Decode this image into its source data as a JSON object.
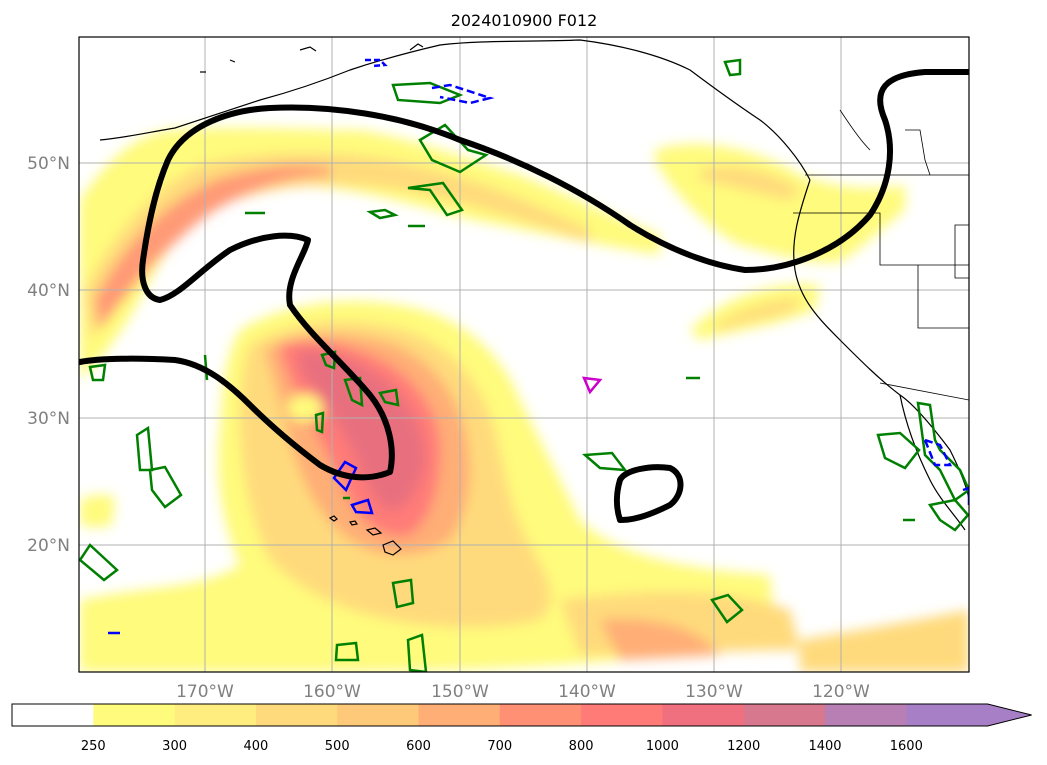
{
  "title": "2024010900 F012",
  "map": {
    "lat_labels": [
      "50°N",
      "40°N",
      "30°N",
      "20°N"
    ],
    "lon_labels": [
      "170°W",
      "160°W",
      "150°W",
      "140°W",
      "130°W",
      "120°W"
    ],
    "gridlines": true
  },
  "colorbar": {
    "levels": [
      "250",
      "300",
      "400",
      "500",
      "600",
      "700",
      "800",
      "1000",
      "1200",
      "1400",
      "1600"
    ],
    "colors": [
      "#ffffff",
      "#fffb7c",
      "#ffed80",
      "#ffda7c",
      "#ffc97a",
      "#ffae76",
      "#ff9074",
      "#ff7b78",
      "#f07080",
      "#d8788e",
      "#b87fb4",
      "#a77fc6"
    ],
    "extend": "max"
  },
  "contours": {
    "thick_line_color": "#000000",
    "hatched_contour_color": "#008000",
    "dashed_contour_color": "#0000ff",
    "magenta_contour_color": "#cc00cc"
  }
}
